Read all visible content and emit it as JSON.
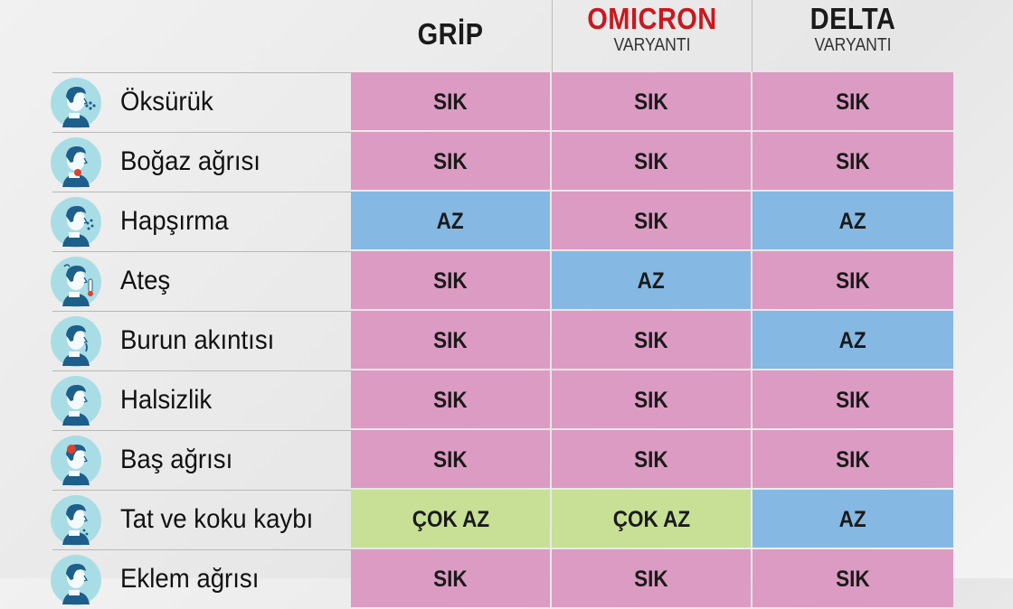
{
  "columns": [
    {
      "name": "GRİP",
      "sub": ""
    },
    {
      "name": "OMICRON",
      "sub": "VARYANTI"
    },
    {
      "name": "DELTA",
      "sub": "VARYANTI"
    }
  ],
  "colors": {
    "SIK": "#dc9bc2",
    "AZ": "#85b8e3",
    "COK": "#c7e096",
    "omicron_title": "#c8191f",
    "icon_bg": "#a9dde6",
    "icon_figure": "#1d5f8a"
  },
  "rows": [
    {
      "symptom": "Öksürük",
      "icon": "cough-icon",
      "values": [
        "SIK",
        "SIK",
        "SIK"
      ],
      "levels": [
        "SIK",
        "SIK",
        "SIK"
      ]
    },
    {
      "symptom": "Boğaz ağrısı",
      "icon": "sore-throat-icon",
      "values": [
        "SIK",
        "SIK",
        "SIK"
      ],
      "levels": [
        "SIK",
        "SIK",
        "SIK"
      ]
    },
    {
      "symptom": "Hapşırma",
      "icon": "sneeze-icon",
      "values": [
        "AZ",
        "SIK",
        "AZ"
      ],
      "levels": [
        "AZ",
        "SIK",
        "AZ"
      ]
    },
    {
      "symptom": "Ateş",
      "icon": "fever-icon",
      "values": [
        "SIK",
        "AZ",
        "SIK"
      ],
      "levels": [
        "SIK",
        "AZ",
        "SIK"
      ]
    },
    {
      "symptom": "Burun akıntısı",
      "icon": "runny-nose-icon",
      "values": [
        "SIK",
        "SIK",
        "AZ"
      ],
      "levels": [
        "SIK",
        "SIK",
        "AZ"
      ]
    },
    {
      "symptom": "Halsizlik",
      "icon": "fatigue-icon",
      "values": [
        "SIK",
        "SIK",
        "SIK"
      ],
      "levels": [
        "SIK",
        "SIK",
        "SIK"
      ]
    },
    {
      "symptom": "Baş ağrısı",
      "icon": "headache-icon",
      "values": [
        "SIK",
        "SIK",
        "SIK"
      ],
      "levels": [
        "SIK",
        "SIK",
        "SIK"
      ]
    },
    {
      "symptom": "Tat ve koku kaybı",
      "icon": "taste-smell-loss-icon",
      "values": [
        "ÇOK AZ",
        "ÇOK AZ",
        "AZ"
      ],
      "levels": [
        "COK",
        "COK",
        "AZ"
      ]
    },
    {
      "symptom": "Eklem ağrısı",
      "icon": "joint-pain-icon",
      "values": [
        "SIK",
        "SIK",
        "SIK"
      ],
      "levels": [
        "SIK",
        "SIK",
        "SIK"
      ]
    }
  ]
}
